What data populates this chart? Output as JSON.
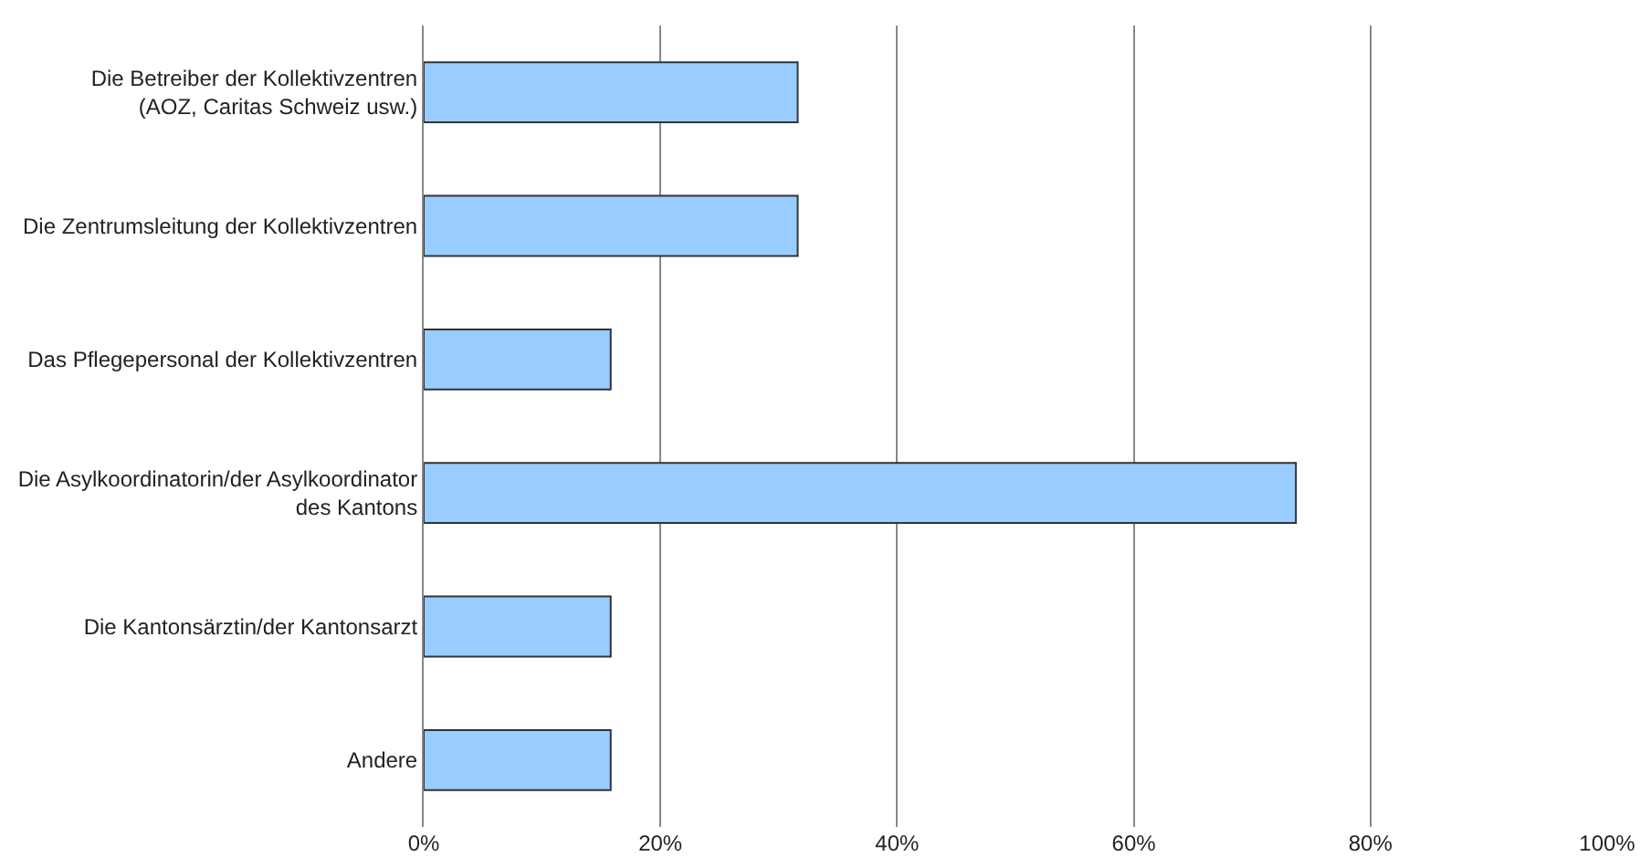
{
  "chart_data": {
    "type": "bar",
    "orientation": "horizontal",
    "categories": [
      "Die Betreiber der Kollektivzentren (AOZ, Caritas Schweiz usw.)",
      "Die Zentrumsleitung der Kollektivzentren",
      "Das Pflegepersonal der Kollektivzentren",
      "Die Asylkoordinatorin/der Asylkoordinator des Kantons",
      "Die Kantonsärztin/der Kantonsarzt",
      "Andere"
    ],
    "values": [
      31.6,
      31.6,
      15.8,
      73.7,
      15.8,
      15.8
    ],
    "color": "#99ccff",
    "xlim": [
      0,
      100
    ],
    "xticks": [
      {
        "value": 0,
        "label": "0%"
      },
      {
        "value": 20,
        "label": "20%"
      },
      {
        "value": 40,
        "label": "40%"
      },
      {
        "value": 60,
        "label": "60%"
      },
      {
        "value": 80,
        "label": "80%"
      },
      {
        "value": 100,
        "label": "100%"
      }
    ],
    "grid": "x"
  }
}
